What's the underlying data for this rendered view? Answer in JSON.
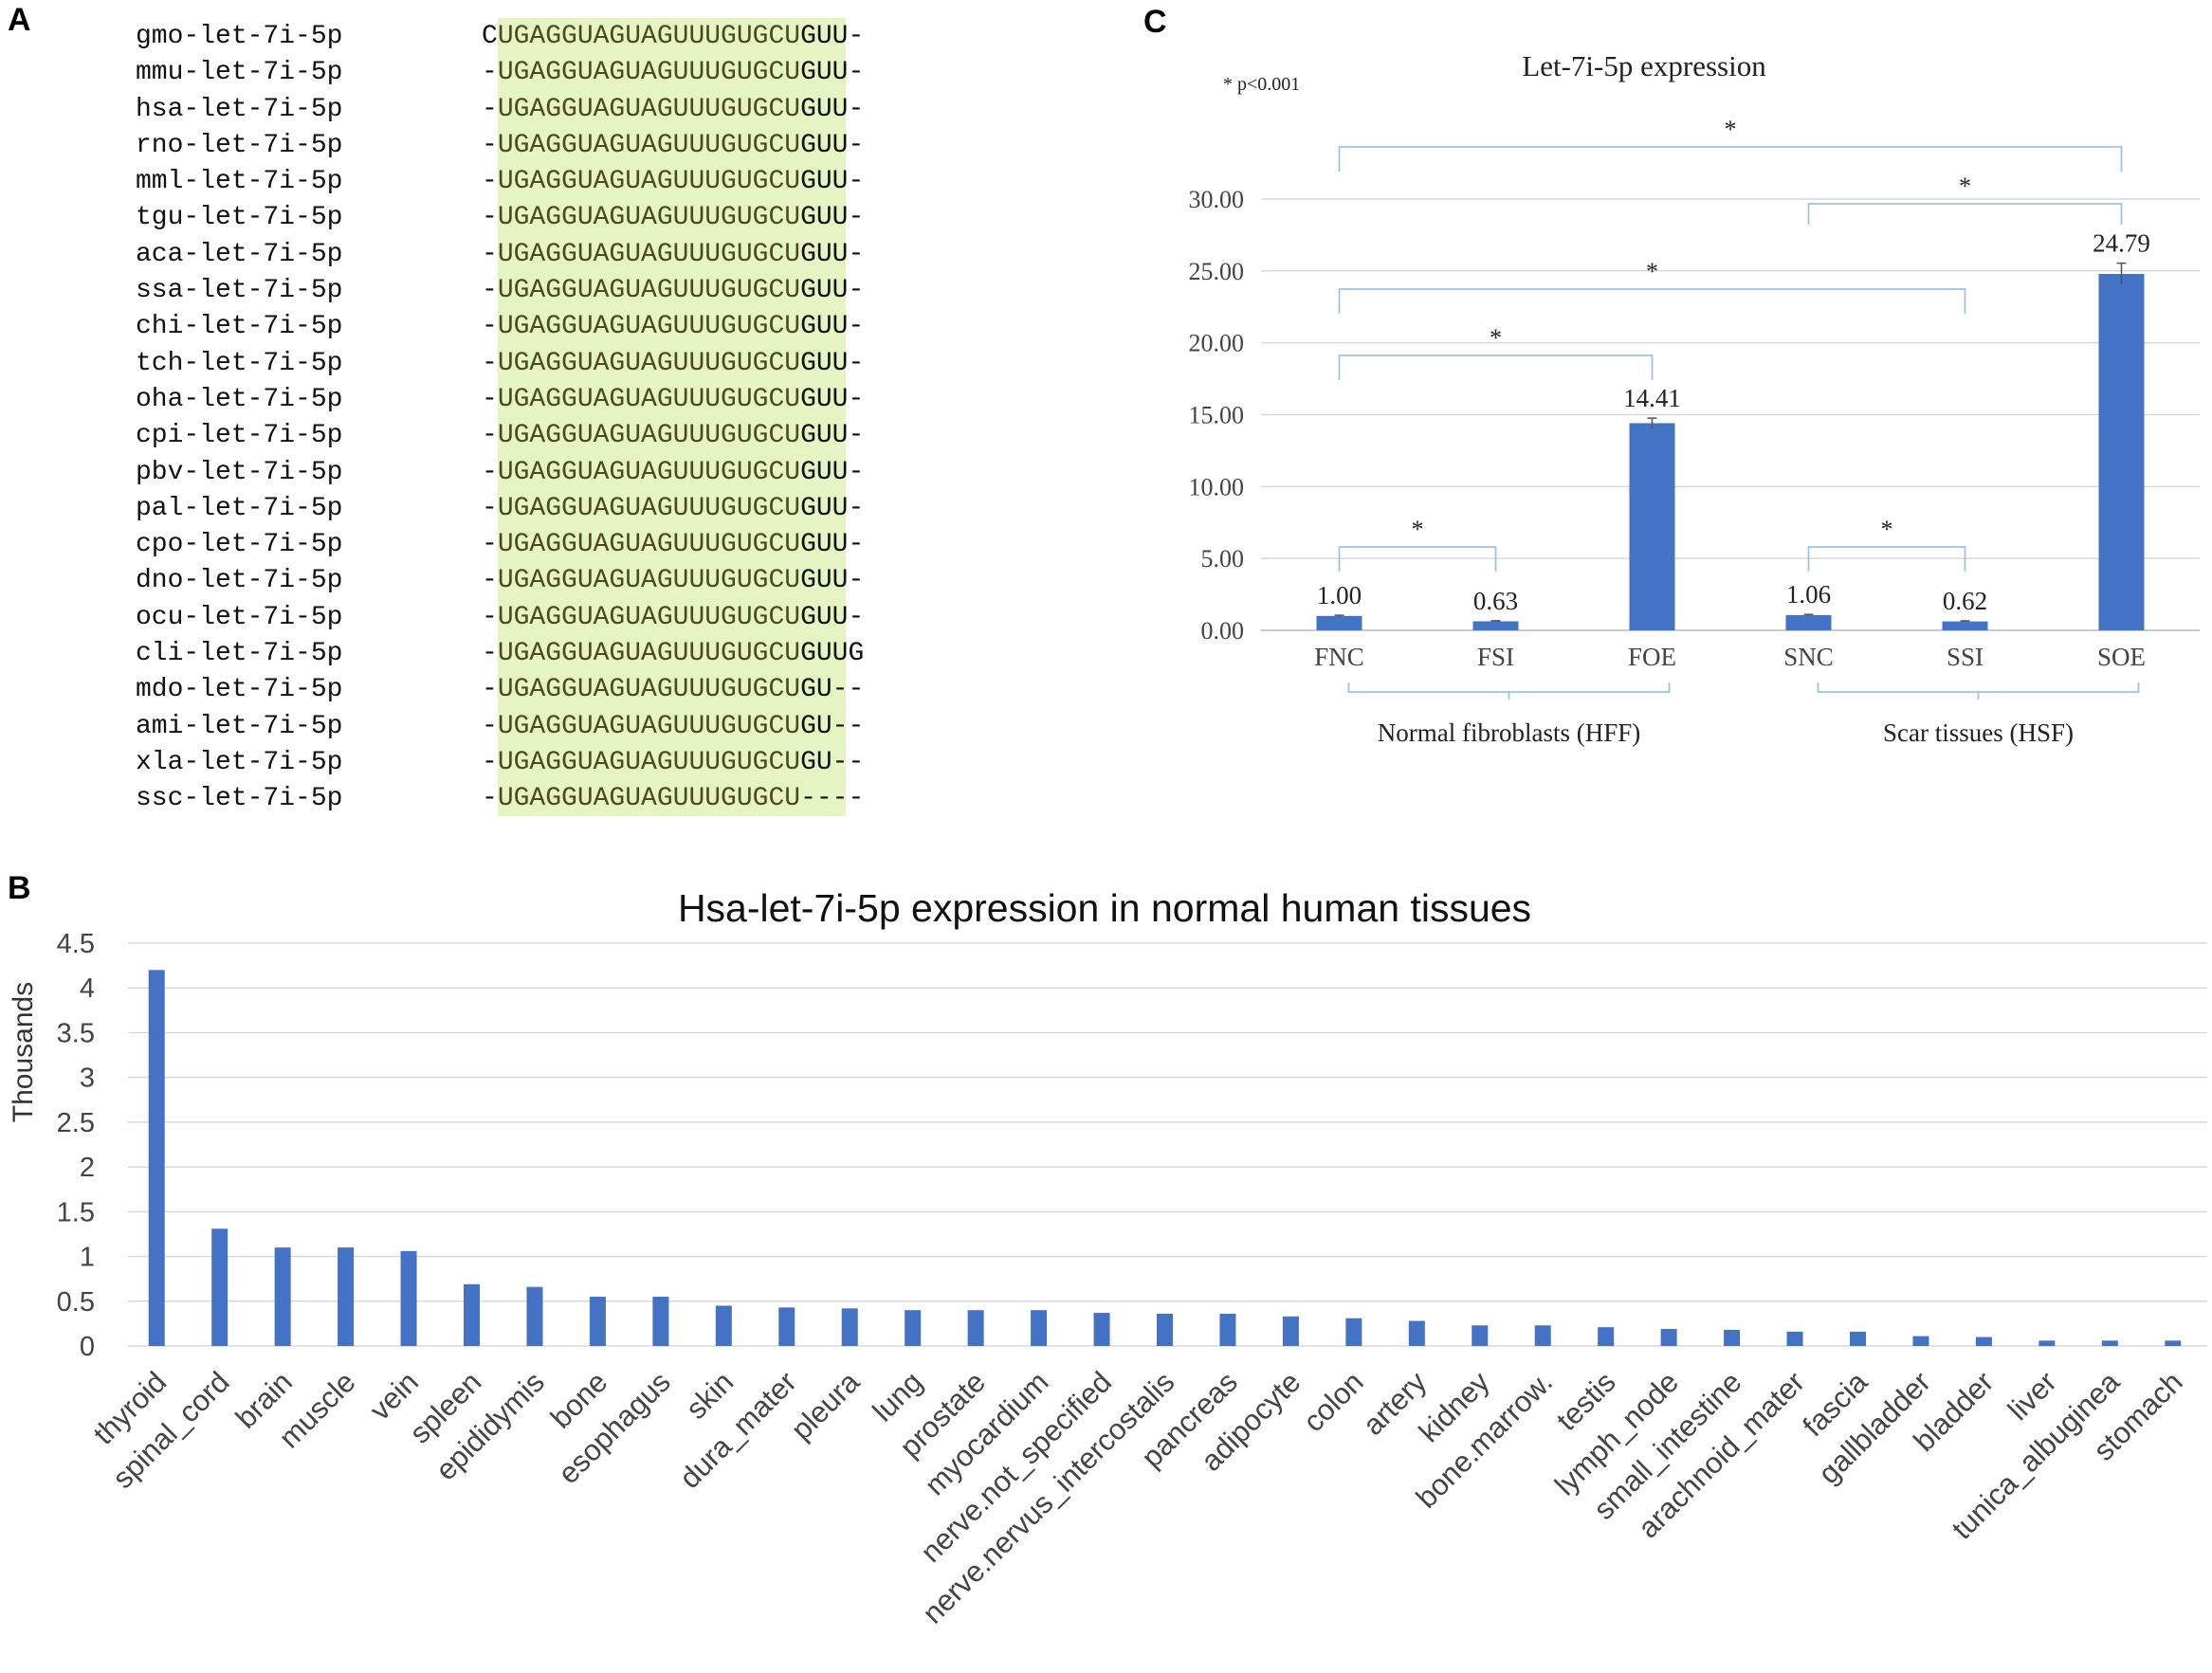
{
  "panels": {
    "a": "A",
    "b": "B",
    "c": "C"
  },
  "alignment": {
    "species": [
      "gmo-let-7i-5p",
      "mmu-let-7i-5p",
      "hsa-let-7i-5p",
      "rno-let-7i-5p",
      "mml-let-7i-5p",
      "tgu-let-7i-5p",
      "aca-let-7i-5p",
      "ssa-let-7i-5p",
      "chi-let-7i-5p",
      "tch-let-7i-5p",
      "oha-let-7i-5p",
      "cpi-let-7i-5p",
      "pbv-let-7i-5p",
      "pal-let-7i-5p",
      "cpo-let-7i-5p",
      "dno-let-7i-5p",
      "ocu-let-7i-5p",
      "cli-let-7i-5p",
      "mdo-let-7i-5p",
      "ami-let-7i-5p",
      "xla-let-7i-5p",
      "ssc-let-7i-5p"
    ],
    "prefix": [
      "C",
      "-",
      "-",
      "-",
      "-",
      "-",
      "-",
      "-",
      "-",
      "-",
      "-",
      "-",
      "-",
      "-",
      "-",
      "-",
      "-",
      "-",
      "-",
      "-",
      "-",
      "-"
    ],
    "core": "UGAGGUAGUAGUUUGUGCU",
    "suffix": [
      "GUU-",
      "GUU-",
      "GUU-",
      "GUU-",
      "GUU-",
      "GUU-",
      "GUU-",
      "GUU-",
      "GUU-",
      "GUU-",
      "GUU-",
      "GUU-",
      "GUU-",
      "GUU-",
      "GUU-",
      "GUU-",
      "GUU-",
      "GUUG",
      "GU--",
      "GU--",
      "GU--",
      "----"
    ],
    "highlight_color": "#e6f3c2"
  },
  "chart_data": [
    {
      "type": "bar",
      "title": "Hsa-let-7i-5p expression in normal human tissues",
      "xlabel": "",
      "ylabel": "Thousands",
      "ylim": [
        0,
        4.5
      ],
      "yticks": [
        "0",
        "0.5",
        "1",
        "1.5",
        "2",
        "2.5",
        "3",
        "3.5",
        "4",
        "4.5"
      ],
      "color": "#4472c4",
      "categories": [
        "thyroid",
        "spinal_cord",
        "brain",
        "muscle",
        "vein",
        "spleen",
        "epididymis",
        "bone",
        "esophagus",
        "skin",
        "dura_mater",
        "pleura",
        "lung",
        "prostate",
        "myocardium",
        "nerve.not_specified",
        "nerve.nervus_intercostalis",
        "pancreas",
        "adipocyte",
        "colon",
        "artery",
        "kidney",
        "bone.marrow.",
        "testis",
        "lymph_node",
        "small_intestine",
        "arachnoid_mater",
        "fascia",
        "gallbladder",
        "bladder",
        "liver",
        "tunica_albuginea",
        "stomach"
      ],
      "values": [
        4.2,
        1.31,
        1.1,
        1.1,
        1.06,
        0.69,
        0.66,
        0.55,
        0.55,
        0.45,
        0.43,
        0.42,
        0.4,
        0.4,
        0.4,
        0.37,
        0.36,
        0.36,
        0.33,
        0.31,
        0.28,
        0.23,
        0.23,
        0.21,
        0.19,
        0.18,
        0.16,
        0.16,
        0.11,
        0.1,
        0.06,
        0.06,
        0.06
      ]
    },
    {
      "type": "bar",
      "title": "Let-7i-5p expression",
      "note": "* p<0.001",
      "ylim": [
        0,
        30
      ],
      "yticks": [
        "0.00",
        "5.00",
        "10.00",
        "15.00",
        "20.00",
        "25.00",
        "30.00"
      ],
      "color": "#4472c4",
      "categories": [
        "FNC",
        "FSI",
        "FOE",
        "SNC",
        "SSI",
        "SOE"
      ],
      "values": [
        1.0,
        0.63,
        14.41,
        1.06,
        0.62,
        24.79
      ],
      "labels": [
        "1.00",
        "0.63",
        "14.41",
        "1.06",
        "0.62",
        "24.79"
      ],
      "errors": [
        0.05,
        0.04,
        0.35,
        0.05,
        0.04,
        0.75
      ],
      "groups": [
        "Normal fibroblasts (HFF)",
        "Scar tissues (HSF)"
      ],
      "significance": [
        {
          "from": "FNC",
          "to": "SOE",
          "label": "*"
        },
        {
          "from": "SNC",
          "to": "SOE",
          "label": "*"
        },
        {
          "from": "FNC",
          "to": "SSI",
          "label": "*"
        },
        {
          "from": "FNC",
          "to": "FOE",
          "label": "*"
        },
        {
          "from": "FNC",
          "to": "FSI",
          "label": "*"
        },
        {
          "from": "SNC",
          "to": "SSI",
          "label": "*"
        }
      ]
    }
  ]
}
